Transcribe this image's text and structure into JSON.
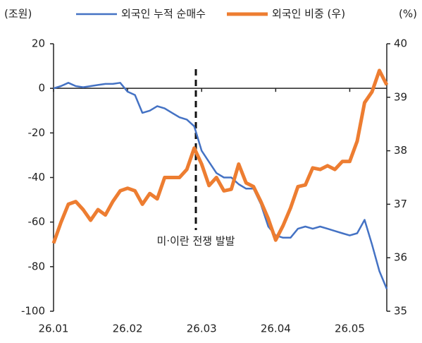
{
  "chart_data": {
    "type": "line",
    "y_unit": "(조원)",
    "y2_unit": "(%)",
    "annotation": "미·이란 전쟁 발발",
    "categories": [
      "26.01",
      null,
      null,
      null,
      null,
      null,
      null,
      null,
      null,
      null,
      "26.02",
      null,
      null,
      null,
      null,
      null,
      null,
      null,
      null,
      null,
      "26.03",
      null,
      null,
      null,
      null,
      null,
      null,
      null,
      null,
      null,
      "26.04",
      null,
      null,
      null,
      null,
      null,
      null,
      null,
      null,
      null,
      "26.05",
      null,
      null,
      null,
      null,
      null
    ],
    "series": [
      {
        "name": "외국인 누적 순매수",
        "color": "#4472c4",
        "width": 2.5,
        "values": [
          0,
          1,
          2.5,
          1,
          0.5,
          1,
          1.5,
          2,
          2,
          2.5,
          -1.5,
          -3,
          -11,
          -10,
          -8,
          -9,
          -11,
          -13,
          -14,
          -17,
          -28,
          -33,
          -38,
          -40,
          -40,
          -43,
          -45,
          -45,
          -52,
          -62,
          -66,
          -67,
          -67,
          -63,
          -62,
          -63,
          -62,
          -63,
          -64,
          -65,
          -66,
          -65,
          -59,
          -70,
          -82,
          -90
        ]
      },
      {
        "name": "외국인 비중 (우)",
        "color": "#ed7d31",
        "width": 5,
        "axis": "y2",
        "values": [
          36.27,
          36.66,
          37.0,
          37.05,
          36.9,
          36.7,
          36.9,
          36.8,
          37.05,
          37.25,
          37.3,
          37.25,
          37.0,
          37.2,
          37.1,
          37.5,
          37.5,
          37.5,
          37.65,
          38.05,
          37.75,
          37.35,
          37.5,
          37.25,
          37.28,
          37.75,
          37.4,
          37.33,
          37.05,
          36.73,
          36.33,
          36.6,
          36.93,
          37.33,
          37.36,
          37.68,
          37.65,
          37.72,
          37.65,
          37.8,
          37.8,
          38.18,
          38.9,
          39.1,
          39.5,
          39.23
        ]
      }
    ],
    "ylim": [
      -100,
      20
    ],
    "yticks": [
      20,
      0,
      -20,
      -40,
      -60,
      -80,
      -100
    ],
    "y2lim": [
      35,
      40
    ],
    "y2ticks": [
      40,
      39,
      38,
      37,
      36,
      35
    ]
  }
}
